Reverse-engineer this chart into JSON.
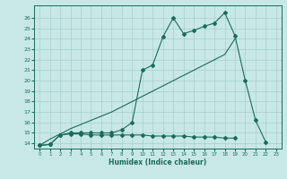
{
  "xlabel": "Humidex (Indice chaleur)",
  "ylabel": "",
  "bg_color": "#c8e8e8",
  "line_color": "#1a6b5a",
  "grid_color": "#a8cece",
  "xlim": [
    -0.5,
    23.5
  ],
  "ylim": [
    13.5,
    27.2
  ],
  "yticks": [
    14,
    15,
    16,
    17,
    18,
    19,
    20,
    21,
    22,
    23,
    24,
    25,
    26
  ],
  "xticks": [
    0,
    1,
    2,
    3,
    4,
    5,
    6,
    7,
    8,
    9,
    10,
    11,
    12,
    13,
    14,
    15,
    16,
    17,
    18,
    19,
    20,
    21,
    22,
    23
  ],
  "x_humidex": [
    0,
    1,
    2,
    3,
    4,
    5,
    6,
    7,
    8,
    9,
    10,
    11,
    12,
    13,
    14,
    15,
    16,
    17,
    18,
    19,
    20,
    21,
    22,
    23
  ],
  "y_max": [
    13.8,
    13.9,
    14.8,
    15.0,
    15.0,
    15.0,
    15.0,
    15.0,
    15.3,
    16.0,
    21.0,
    21.5,
    24.2,
    26.0,
    24.5,
    24.8,
    25.2,
    25.5,
    26.5,
    24.3,
    20.0,
    16.2,
    14.1,
    null
  ],
  "y_min": [
    13.8,
    13.9,
    14.8,
    14.9,
    14.9,
    14.8,
    14.8,
    14.8,
    14.8,
    14.8,
    14.8,
    14.7,
    14.7,
    14.7,
    14.7,
    14.6,
    14.6,
    14.6,
    14.5,
    14.5,
    null,
    null,
    null,
    null
  ],
  "y_diag": [
    13.8,
    14.4,
    14.9,
    15.4,
    15.8,
    16.2,
    16.6,
    17.0,
    17.5,
    18.0,
    18.5,
    19.0,
    19.5,
    20.0,
    20.5,
    21.0,
    21.5,
    22.0,
    22.5,
    24.0,
    null,
    null,
    null,
    null
  ]
}
